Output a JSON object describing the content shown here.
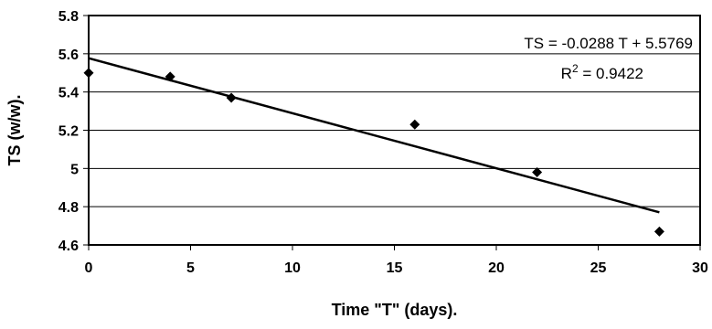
{
  "chart_data": {
    "type": "scatter",
    "title": "",
    "xlabel": "Time \"T\" (days).",
    "ylabel": "TS (w/w).",
    "xlim": [
      0,
      30
    ],
    "ylim": [
      4.6,
      5.8
    ],
    "x_ticks": [
      "0",
      "5",
      "10",
      "15",
      "20",
      "25",
      "30"
    ],
    "y_ticks": [
      "4.6",
      "4.8",
      "5",
      "5.2",
      "5.4",
      "5.6",
      "5.8"
    ],
    "grid": "horizontal",
    "series": [
      {
        "marker": "diamond",
        "x": [
          0,
          4,
          7,
          16,
          22,
          28
        ],
        "y": [
          5.5,
          5.48,
          5.37,
          5.23,
          4.98,
          4.67
        ]
      }
    ],
    "trendline": {
      "type": "linear",
      "slope": -0.0288,
      "intercept": 5.5769,
      "x_range": [
        0,
        28
      ],
      "equation_label": "TS = -0.0288 T + 5.5769",
      "r2_prefix": "R",
      "r2_exponent": "2",
      "r2_value_label": " = 0.9422"
    },
    "colors": {
      "marker": "#000000",
      "line": "#000000",
      "grid": "#000000"
    }
  }
}
